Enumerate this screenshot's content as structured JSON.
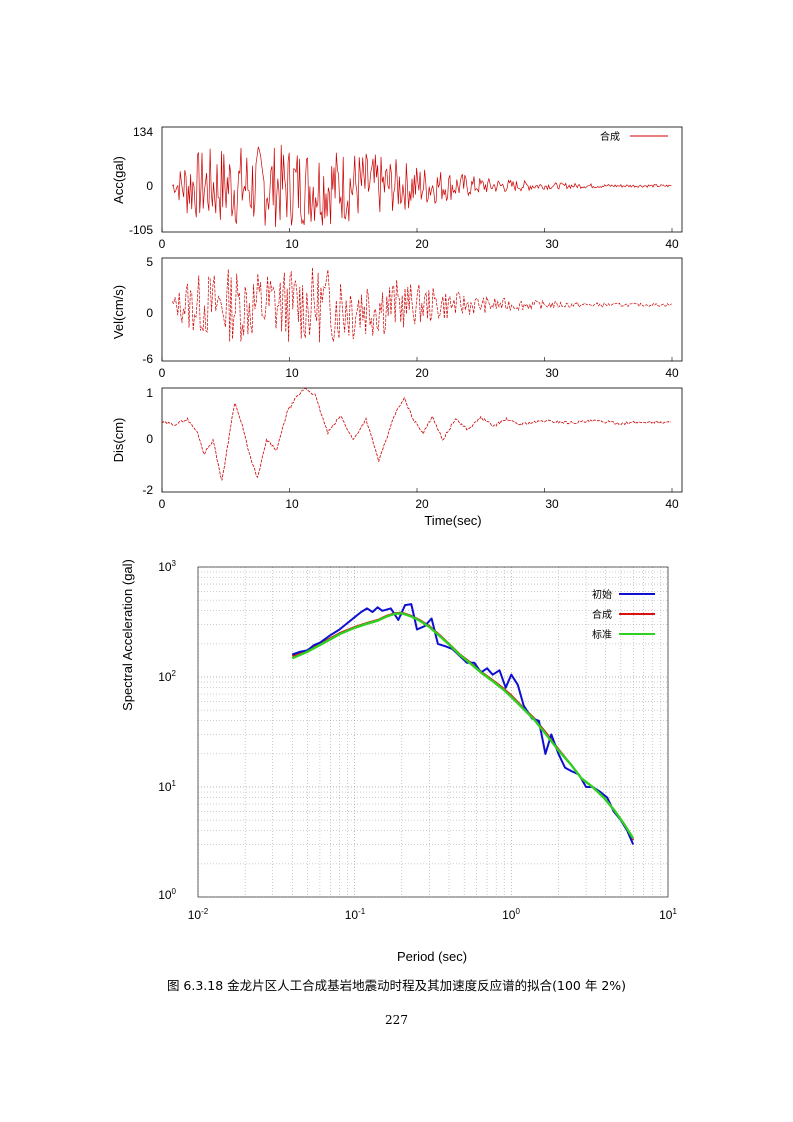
{
  "chart_data": [
    {
      "type": "line",
      "panel": "acceleration",
      "ylabel": "Acc(gal)",
      "xlabel": "",
      "xlim": [
        0,
        40
      ],
      "ylim": [
        -105,
        134
      ],
      "x_ticks": [
        "0",
        "10",
        "20",
        "30",
        "40"
      ],
      "y_ticks": [
        "134",
        "0",
        "-105"
      ],
      "legend": "合成",
      "legend_position": "top-right",
      "series_color": "#cc0000",
      "envelope": {
        "t": [
          0,
          1,
          2,
          5,
          10,
          15,
          20,
          25,
          30,
          35,
          40
        ],
        "amp": [
          0,
          20,
          75,
          95,
          95,
          85,
          50,
          20,
          8,
          4,
          3
        ]
      }
    },
    {
      "type": "line",
      "panel": "velocity",
      "ylabel": "Vel(cm/s)",
      "xlabel": "",
      "xlim": [
        0,
        40
      ],
      "ylim": [
        -6,
        5
      ],
      "x_ticks": [
        "0",
        "10",
        "20",
        "30",
        "40"
      ],
      "y_ticks": [
        "5",
        "0",
        "-6"
      ],
      "series_color": "#cc0000",
      "envelope": {
        "t": [
          0,
          1,
          2,
          5,
          10,
          15,
          20,
          25,
          30,
          35,
          40
        ],
        "amp": [
          0,
          1,
          3,
          4,
          4,
          4.2,
          2.2,
          0.9,
          0.4,
          0.2,
          0.15
        ]
      }
    },
    {
      "type": "line",
      "panel": "displacement",
      "ylabel": "Dis(cm)",
      "xlabel": "Time(sec)",
      "xlim": [
        0,
        40
      ],
      "ylim": [
        -2,
        1
      ],
      "x_ticks": [
        "0",
        "10",
        "20",
        "30",
        "40"
      ],
      "y_ticks": [
        "1",
        "0",
        "-2"
      ],
      "series_color": "#cc0000",
      "t": [
        0,
        1,
        2,
        2.8,
        3.3,
        4,
        4.7,
        5.3,
        5.7,
        6.3,
        7,
        7.5,
        8.2,
        9,
        9.8,
        10.5,
        11.2,
        12,
        13,
        14,
        15,
        16,
        17,
        17.5,
        18.2,
        19,
        19.7,
        20.5,
        21.2,
        22,
        23,
        24,
        25,
        26,
        27,
        28,
        30,
        32,
        34,
        36,
        38,
        40
      ],
      "values": [
        0,
        -0.05,
        0.1,
        -0.3,
        -0.9,
        -0.5,
        -1.7,
        -0.3,
        0.6,
        -0.1,
        -1.1,
        -1.6,
        -0.5,
        -0.8,
        0.3,
        0.7,
        1.0,
        0.8,
        -0.3,
        0.2,
        -0.5,
        0.1,
        -1.1,
        -0.6,
        0.2,
        0.7,
        0.1,
        -0.3,
        0.2,
        -0.5,
        0.1,
        -0.2,
        0.15,
        -0.1,
        0.1,
        -0.05,
        0.05,
        0.0,
        0.05,
        -0.02,
        0.02,
        0.0
      ]
    },
    {
      "type": "line",
      "panel": "response-spectrum",
      "xlabel": "Period (sec)",
      "ylabel": "Spectral Acceleration (gal)",
      "xscale": "log",
      "yscale": "log",
      "xlim": [
        0.01,
        10
      ],
      "ylim": [
        1,
        1000
      ],
      "x_ticks": [
        {
          "base": "10",
          "exp": "-2"
        },
        {
          "base": "10",
          "exp": "-1"
        },
        {
          "base": "10",
          "exp": "0"
        },
        {
          "base": "10",
          "exp": "1"
        }
      ],
      "y_ticks": [
        {
          "base": "10",
          "exp": "3"
        },
        {
          "base": "10",
          "exp": "2"
        },
        {
          "base": "10",
          "exp": "1"
        },
        {
          "base": "10",
          "exp": "0"
        }
      ],
      "grid": true,
      "legend_position": "top-right",
      "series": [
        {
          "name": "初始",
          "color": "#1010d0",
          "x": [
            0.04,
            0.045,
            0.05,
            0.055,
            0.06,
            0.07,
            0.08,
            0.09,
            0.1,
            0.11,
            0.12,
            0.13,
            0.14,
            0.15,
            0.17,
            0.19,
            0.21,
            0.23,
            0.25,
            0.28,
            0.31,
            0.34,
            0.38,
            0.42,
            0.47,
            0.52,
            0.58,
            0.64,
            0.7,
            0.76,
            0.84,
            0.92,
            1.0,
            1.1,
            1.2,
            1.35,
            1.5,
            1.65,
            1.8,
            2.0,
            2.2,
            2.4,
            2.7,
            3.0,
            3.3,
            3.7,
            4.1,
            4.5,
            5.0,
            5.5,
            6.0
          ],
          "values": [
            160,
            170,
            175,
            195,
            205,
            240,
            270,
            310,
            350,
            390,
            420,
            390,
            430,
            400,
            420,
            330,
            450,
            460,
            270,
            290,
            340,
            200,
            190,
            180,
            155,
            135,
            135,
            110,
            120,
            105,
            115,
            80,
            105,
            85,
            55,
            42,
            40,
            20,
            30,
            20,
            15,
            14,
            13,
            10,
            10,
            9,
            8,
            6,
            5,
            4,
            3
          ]
        },
        {
          "name": "合成",
          "color": "#dd1010",
          "x": [
            0.04,
            0.05,
            0.06,
            0.07,
            0.08,
            0.1,
            0.12,
            0.14,
            0.16,
            0.18,
            0.2,
            0.23,
            0.26,
            0.3,
            0.35,
            0.4,
            0.47,
            0.55,
            0.65,
            0.75,
            0.88,
            1.0,
            1.2,
            1.4,
            1.7,
            2.0,
            2.4,
            2.8,
            3.3,
            3.9,
            4.6,
            5.3,
            6.0
          ],
          "values": [
            155,
            175,
            200,
            225,
            250,
            285,
            310,
            330,
            360,
            380,
            385,
            360,
            330,
            290,
            240,
            200,
            160,
            135,
            110,
            95,
            80,
            68,
            52,
            42,
            30,
            22,
            16,
            12,
            10,
            8,
            6,
            4.5,
            3.3
          ]
        },
        {
          "name": "标准",
          "color": "#30d020",
          "x": [
            0.04,
            0.05,
            0.06,
            0.07,
            0.08,
            0.1,
            0.12,
            0.14,
            0.16,
            0.18,
            0.2,
            0.23,
            0.26,
            0.3,
            0.35,
            0.4,
            0.47,
            0.55,
            0.65,
            0.75,
            0.88,
            1.0,
            1.2,
            1.4,
            1.7,
            2.0,
            2.4,
            2.8,
            3.3,
            3.9,
            4.6,
            5.3,
            6.0
          ],
          "values": [
            148,
            170,
            195,
            220,
            245,
            280,
            305,
            325,
            355,
            375,
            380,
            355,
            325,
            285,
            235,
            198,
            158,
            132,
            108,
            93,
            78,
            66,
            51,
            41,
            29,
            21.5,
            16,
            12,
            10,
            8,
            6,
            4.5,
            3.4
          ]
        }
      ]
    }
  ],
  "caption": "图 6.3.18 金龙片区人工合成基岩地震动时程及其加速度反应谱的拟合(100 年 2%)",
  "page_number": "227"
}
